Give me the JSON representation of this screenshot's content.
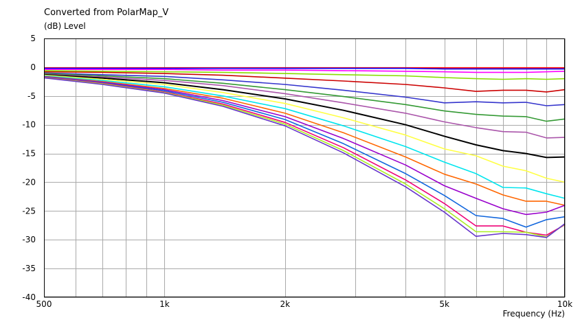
{
  "chart_data": {
    "type": "line",
    "title": "Converted from PolarMap_V",
    "ylabel": "(dB)  Level",
    "xlabel": "Frequency  (Hz)",
    "x_scale": "log",
    "xlim": [
      500,
      10000
    ],
    "ylim": [
      -40,
      5
    ],
    "grid": true,
    "y_ticks": [
      5,
      0,
      -5,
      -10,
      -15,
      -20,
      -25,
      -30,
      -35,
      -40
    ],
    "x_tick_labels": [
      {
        "value": 500,
        "label": "500"
      },
      {
        "value": 1000,
        "label": "1k"
      },
      {
        "value": 2000,
        "label": "2k"
      },
      {
        "value": 5000,
        "label": "5k"
      },
      {
        "value": 10000,
        "label": "10k"
      }
    ],
    "x_minor": [
      600,
      700,
      800,
      900,
      3000,
      4000,
      6000,
      7000,
      8000,
      9000
    ],
    "x": [
      500,
      700,
      1000,
      1400,
      2000,
      2800,
      4000,
      5000,
      6000,
      7000,
      8000,
      9000,
      10000
    ],
    "series": [
      {
        "color": "#ff0000",
        "values": [
          -0.1,
          -0.1,
          -0.1,
          -0.1,
          -0.1,
          -0.1,
          -0.1,
          -0.1,
          -0.1,
          -0.1,
          -0.1,
          -0.1,
          -0.1
        ]
      },
      {
        "color": "#0000ff",
        "values": [
          -0.2,
          -0.2,
          -0.2,
          -0.2,
          -0.2,
          -0.2,
          -0.2,
          -0.3,
          -0.3,
          -0.3,
          -0.3,
          -0.3,
          -0.3
        ]
      },
      {
        "color": "#ff00ff",
        "values": [
          -0.4,
          -0.4,
          -0.4,
          -0.5,
          -0.5,
          -0.6,
          -0.7,
          -0.8,
          -0.9,
          -0.9,
          -0.9,
          -0.8,
          -0.7
        ]
      },
      {
        "color": "#88dd00",
        "values": [
          -0.6,
          -0.7,
          -0.8,
          -0.9,
          -1.1,
          -1.3,
          -1.5,
          -1.8,
          -2.0,
          -2.1,
          -2.0,
          -2.1,
          -2.0
        ]
      },
      {
        "color": "#cc0000",
        "values": [
          -0.8,
          -0.9,
          -1.1,
          -1.4,
          -1.9,
          -2.4,
          -3.0,
          -3.6,
          -4.2,
          -4.0,
          -4.0,
          -4.3,
          -3.9
        ]
      },
      {
        "color": "#3333cc",
        "values": [
          -1.0,
          -1.3,
          -1.6,
          -2.2,
          -3.0,
          -4.0,
          -5.2,
          -6.2,
          -6.0,
          -6.2,
          -6.1,
          -6.7,
          -6.5
        ]
      },
      {
        "color": "#339933",
        "values": [
          -1.1,
          -1.5,
          -2.0,
          -2.8,
          -3.9,
          -5.1,
          -6.5,
          -7.6,
          -8.2,
          -8.5,
          -8.6,
          -9.4,
          -9.0
        ]
      },
      {
        "color": "#aa55aa",
        "values": [
          -1.2,
          -1.7,
          -2.3,
          -3.2,
          -4.6,
          -6.2,
          -8.0,
          -9.5,
          -10.5,
          -11.2,
          -11.3,
          -12.3,
          -12.2
        ]
      },
      {
        "color": "#000000",
        "values": [
          -1.3,
          -1.9,
          -2.7,
          -3.9,
          -5.5,
          -7.5,
          -10.0,
          -12.0,
          -13.5,
          -14.5,
          -15.0,
          -15.7,
          -15.6
        ]
      },
      {
        "color": "#ffff44",
        "values": [
          -1.4,
          -2.1,
          -3.0,
          -4.4,
          -6.3,
          -8.8,
          -11.8,
          -14.2,
          -15.4,
          -17.2,
          -18.0,
          -19.3,
          -20.0
        ]
      },
      {
        "color": "#00e5ee",
        "values": [
          -1.5,
          -2.3,
          -3.4,
          -5.0,
          -7.2,
          -10.2,
          -13.8,
          -16.5,
          -18.5,
          -20.9,
          -21.0,
          -22.0,
          -22.8
        ]
      },
      {
        "color": "#ff6600",
        "values": [
          -1.6,
          -2.5,
          -3.7,
          -5.4,
          -8.0,
          -11.4,
          -15.6,
          -18.6,
          -20.3,
          -22.2,
          -23.3,
          -23.3,
          -24.0
        ]
      },
      {
        "color": "#9900cc",
        "values": [
          -1.65,
          -2.6,
          -3.9,
          -5.8,
          -8.6,
          -12.4,
          -17.0,
          -20.6,
          -22.8,
          -24.6,
          -25.6,
          -25.2,
          -24.0
        ]
      },
      {
        "color": "#1166dd",
        "values": [
          -1.7,
          -2.7,
          -4.1,
          -6.1,
          -9.1,
          -13.3,
          -18.5,
          -22.3,
          -25.8,
          -26.3,
          -27.8,
          -26.5,
          -26.0
        ]
      },
      {
        "color": "#ee0077",
        "values": [
          -1.75,
          -2.8,
          -4.3,
          -6.4,
          -9.6,
          -14.0,
          -19.6,
          -23.7,
          -27.6,
          -27.6,
          -28.7,
          -29.2,
          -27.4
        ]
      },
      {
        "color": "#aaee22",
        "values": [
          -1.8,
          -2.9,
          -4.4,
          -6.6,
          -9.9,
          -14.5,
          -20.3,
          -24.6,
          -28.6,
          -28.6,
          -28.7,
          -29.5,
          -27.3
        ]
      },
      {
        "color": "#6633cc",
        "values": [
          -1.85,
          -3.0,
          -4.5,
          -6.8,
          -10.2,
          -14.9,
          -20.8,
          -25.2,
          -29.4,
          -28.9,
          -29.1,
          -29.6,
          -27.2
        ]
      }
    ]
  }
}
